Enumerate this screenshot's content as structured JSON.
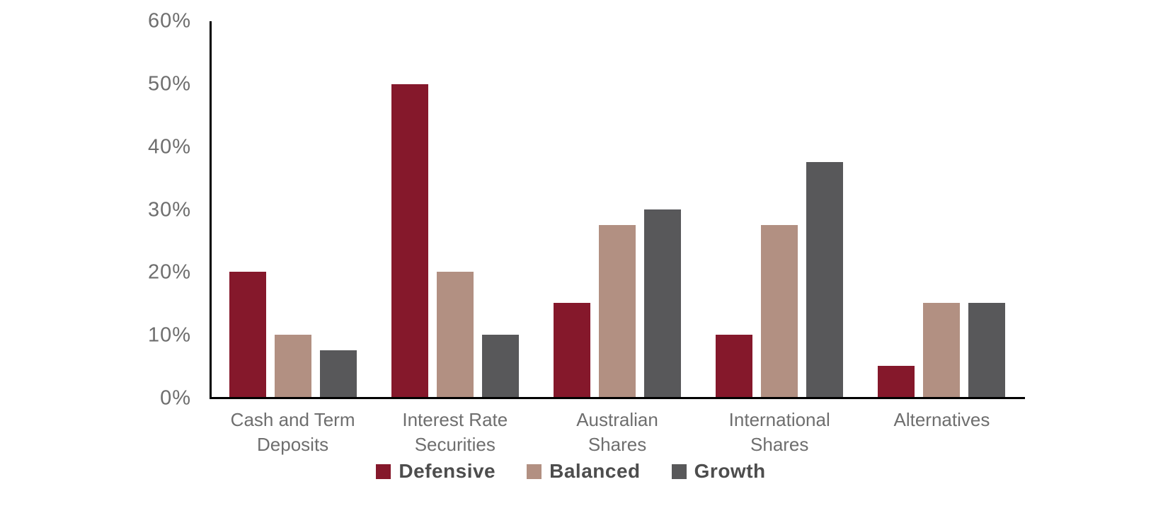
{
  "chart_data": {
    "type": "bar",
    "title": "",
    "xlabel": "",
    "ylabel": "",
    "categories": [
      "Cash and Term\nDeposits",
      "Interest Rate\nSecurities",
      "Australian\nShares",
      "International\nShares",
      "Alternatives"
    ],
    "series": [
      {
        "name": "Defensive",
        "color": "#85182B",
        "values": [
          20,
          50,
          15,
          10,
          5
        ]
      },
      {
        "name": "Balanced",
        "color": "#B29082",
        "values": [
          10,
          20,
          27.5,
          27.5,
          15
        ]
      },
      {
        "name": "Growth",
        "color": "#58585A",
        "values": [
          7.5,
          10,
          30,
          37.5,
          15
        ]
      }
    ],
    "ylim": [
      0,
      60
    ],
    "yticks": [
      "0%",
      "10%",
      "20%",
      "30%",
      "40%",
      "50%",
      "60%"
    ],
    "grid": false,
    "legend_position": "bottom",
    "colors": {
      "axis_line": "#000000",
      "tick_label": "#6E6E6E",
      "category_label": "#6E6E6E",
      "legend_label": "#4D4D4D",
      "background": "#FFFFFF"
    }
  }
}
